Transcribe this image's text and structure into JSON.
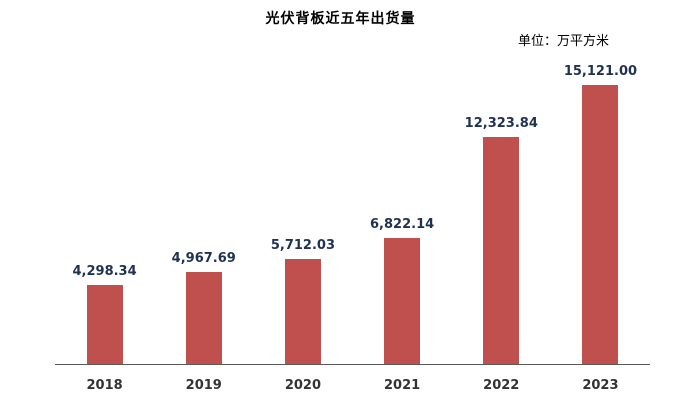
{
  "chart_data": {
    "type": "bar",
    "title": "光伏背板近五年出货量",
    "unit_label": "单位：万平方米",
    "categories": [
      "2018",
      "2019",
      "2020",
      "2021",
      "2022",
      "2023"
    ],
    "values": [
      4298.34,
      4967.69,
      5712.03,
      6822.14,
      12323.84,
      15121.0
    ],
    "value_labels": [
      "4,298.34",
      "4,967.69",
      "5,712.03",
      "6,822.14",
      "12,323.84",
      "15,121.00"
    ],
    "xlabel": "",
    "ylabel": "",
    "ylim": [
      0,
      16500
    ],
    "grid": false,
    "legend": "none"
  },
  "colors": {
    "bar": "#c0504d",
    "value_label": "#1f3250",
    "axis_label": "#333333",
    "axis_line": "#595959",
    "title": "#000000"
  }
}
